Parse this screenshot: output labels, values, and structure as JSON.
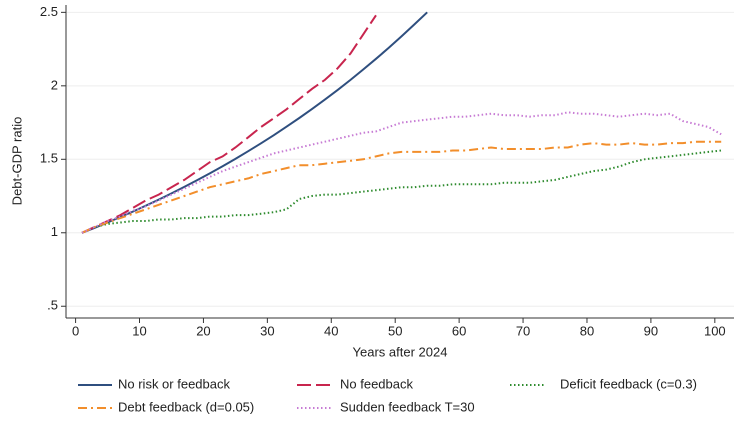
{
  "chart_data": {
    "type": "line",
    "x_label": "Years after 2024",
    "y_label": "Debt-GDP ratio",
    "xlim": [
      -1.5,
      103
    ],
    "ylim": [
      0.42,
      2.55
    ],
    "xticks": [
      0,
      10,
      20,
      30,
      40,
      50,
      60,
      70,
      80,
      90,
      100
    ],
    "yticks": [
      {
        "value": 0.5,
        "label": ".5"
      },
      1,
      1.5,
      2,
      2.5
    ],
    "grid": true,
    "legend": "bottom",
    "x": [
      1,
      3,
      5,
      7,
      9,
      11,
      13,
      15,
      17,
      19,
      21,
      23,
      25,
      27,
      29,
      31,
      33,
      35,
      37,
      39,
      41,
      43,
      45,
      47,
      49,
      51,
      53,
      55,
      57,
      59,
      61,
      63,
      65,
      67,
      69,
      71,
      73,
      75,
      77,
      79,
      81,
      83,
      85,
      87,
      89,
      91,
      93,
      95,
      97,
      99,
      101
    ],
    "series": [
      {
        "name": "No risk or feedback",
        "color": "#2f4f7f",
        "style": "solid",
        "values": [
          1.0,
          1.034,
          1.07,
          1.107,
          1.145,
          1.185,
          1.226,
          1.268,
          1.312,
          1.357,
          1.404,
          1.453,
          1.503,
          1.555,
          1.609,
          1.664,
          1.722,
          1.781,
          1.843,
          1.906,
          1.972,
          2.04,
          2.111,
          2.184,
          2.259,
          2.337,
          2.418,
          2.5,
          null,
          null,
          null,
          null,
          null,
          null,
          null,
          null,
          null,
          null,
          null,
          null,
          null,
          null,
          null,
          null,
          null,
          null,
          null,
          null,
          null,
          null,
          null
        ]
      },
      {
        "name": "No feedback",
        "color": "#c8254e",
        "style": "longdash",
        "values": [
          1.0,
          1.04,
          1.08,
          1.12,
          1.17,
          1.22,
          1.26,
          1.31,
          1.36,
          1.42,
          1.48,
          1.52,
          1.58,
          1.65,
          1.72,
          1.78,
          1.84,
          1.91,
          1.98,
          2.04,
          2.12,
          2.22,
          2.35,
          2.48,
          null,
          null,
          null,
          null,
          null,
          null,
          null,
          null,
          null,
          null,
          null,
          null,
          null,
          null,
          null,
          null,
          null,
          null,
          null,
          null,
          null,
          null,
          null,
          null,
          null,
          null,
          null
        ]
      },
      {
        "name": "Deficit feedback (c=0.3)",
        "color": "#2e8b2e",
        "style": "dot",
        "values": [
          1.0,
          1.04,
          1.06,
          1.07,
          1.08,
          1.08,
          1.09,
          1.09,
          1.1,
          1.1,
          1.11,
          1.11,
          1.12,
          1.12,
          1.13,
          1.14,
          1.16,
          1.23,
          1.25,
          1.26,
          1.26,
          1.27,
          1.28,
          1.29,
          1.3,
          1.31,
          1.31,
          1.32,
          1.32,
          1.33,
          1.33,
          1.33,
          1.33,
          1.34,
          1.34,
          1.34,
          1.35,
          1.36,
          1.38,
          1.4,
          1.42,
          1.43,
          1.45,
          1.48,
          1.5,
          1.51,
          1.52,
          1.53,
          1.54,
          1.55,
          1.56
        ]
      },
      {
        "name": "Debt feedback (d=0.05)",
        "color": "#f28e2b",
        "style": "dashdot",
        "values": [
          1.0,
          1.04,
          1.07,
          1.1,
          1.13,
          1.16,
          1.19,
          1.22,
          1.25,
          1.28,
          1.31,
          1.33,
          1.35,
          1.37,
          1.4,
          1.42,
          1.44,
          1.46,
          1.46,
          1.47,
          1.48,
          1.49,
          1.5,
          1.52,
          1.54,
          1.55,
          1.55,
          1.55,
          1.55,
          1.56,
          1.56,
          1.57,
          1.58,
          1.57,
          1.57,
          1.57,
          1.57,
          1.58,
          1.58,
          1.6,
          1.61,
          1.6,
          1.6,
          1.61,
          1.6,
          1.6,
          1.61,
          1.61,
          1.62,
          1.62,
          1.62
        ]
      },
      {
        "name": "Sudden feedback T=30",
        "color": "#c77bd4",
        "style": "dot",
        "values": [
          1.0,
          1.04,
          1.08,
          1.11,
          1.15,
          1.18,
          1.22,
          1.26,
          1.3,
          1.34,
          1.38,
          1.42,
          1.45,
          1.48,
          1.51,
          1.54,
          1.56,
          1.58,
          1.6,
          1.62,
          1.64,
          1.66,
          1.68,
          1.69,
          1.72,
          1.75,
          1.76,
          1.77,
          1.78,
          1.79,
          1.79,
          1.8,
          1.81,
          1.8,
          1.8,
          1.79,
          1.8,
          1.8,
          1.82,
          1.81,
          1.81,
          1.8,
          1.79,
          1.8,
          1.81,
          1.8,
          1.81,
          1.76,
          1.74,
          1.72,
          1.67
        ]
      }
    ]
  }
}
